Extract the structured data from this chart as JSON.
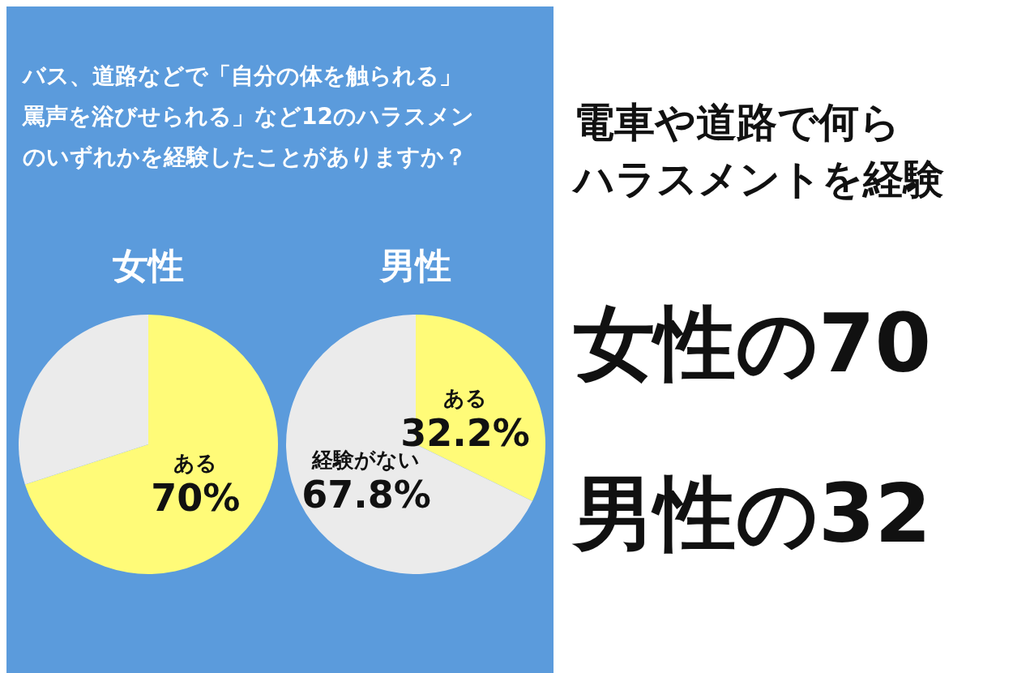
{
  "chart_data": [
    {
      "type": "other",
      "annotations": [
        "バス、道路などで「自分の体を触られる」",
        "罵声を浴びせられる」など12のハラスメン",
        "のいずれかを経験したことがありますか？"
      ]
    },
    {
      "type": "pie",
      "title": "女性",
      "categories": [
        "ある",
        null
      ],
      "values": [
        70,
        30
      ],
      "colors": [
        "#fffb78",
        "#ebebeb"
      ],
      "value_labels": [
        "70%",
        null
      ]
    },
    {
      "type": "pie",
      "title": "男性",
      "categories": [
        "ある",
        "経験がない"
      ],
      "values": [
        32.2,
        67.8
      ],
      "colors": [
        "#fffb78",
        "#ebebeb"
      ],
      "value_labels": [
        "32.2%",
        "67.8%"
      ]
    },
    {
      "type": "other",
      "title": "電車や道路で何ら",
      "subtitle": "ハラスメントを経験",
      "annotations": [
        "女性の70",
        "男性の32"
      ]
    }
  ]
}
